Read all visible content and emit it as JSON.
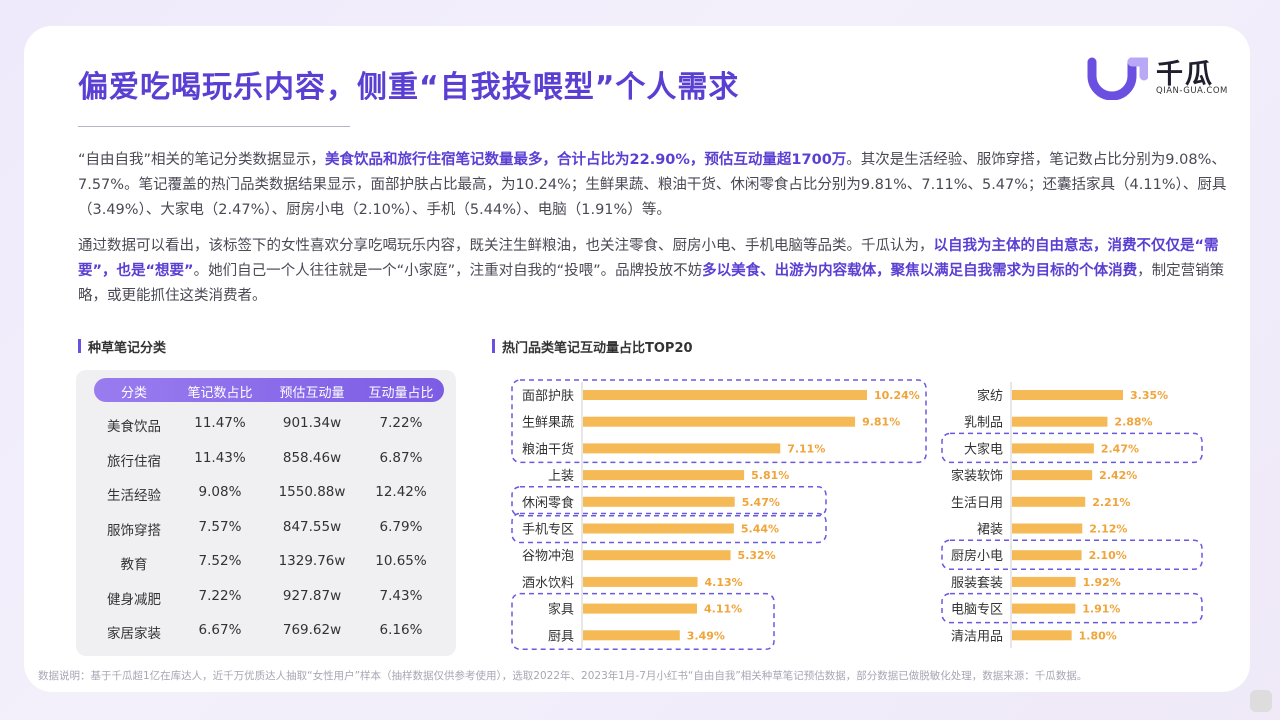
{
  "title": "偏爱吃喝玩乐内容，侧重“自我投喂型”个人需求",
  "logo": {
    "name": "千瓜",
    "sub": "QIAN-GUA.COM"
  },
  "paragraph1": {
    "a": "“自由自我”相关的笔记分类数据显示，",
    "b": "美食饮品和旅行住宿笔记数量最多，合计占比为22.90%，预估互动量超1700万",
    "c": "。其次是生活经验、服饰穿搭，笔记数占比分别为9.08%、7.57%。笔记覆盖的热门品类数据结果显示，面部护肤占比最高，为10.24%；生鲜果蔬、粮油干货、休闲零食占比分别为9.81%、7.11%、5.47%；还囊括家具（4.11%）、厨具（3.49%）、大家电（2.47%）、厨房小电（2.10%）、手机（5.44%）、电脑（1.91%）等。"
  },
  "paragraph2": {
    "a": "通过数据可以看出，该标签下的女性喜欢分享吃喝玩乐内容，既关注生鲜粮油，也关注零食、厨房小电、手机电脑等品类。千瓜认为，",
    "b": "以自我为主体的自由意志，消费不仅仅是“需要”，也是“想要”",
    "c": "。她们自己一个人往往就是一个“小家庭”，注重对自我的“投喂”。品牌投放不妨",
    "d": "多以美食、出游为内容载体，聚焦以满足自我需求为目标的个体消费",
    "e": "，制定营销策略，或更能抓住这类消费者。"
  },
  "table_section_label": "种草笔记分类",
  "chart_section_label": "热门品类笔记互动量占比TOP20",
  "table": {
    "headers": [
      "分类",
      "笔记数占比",
      "预估互动量",
      "互动量占比"
    ],
    "rows": [
      [
        "美食饮品",
        "11.47%",
        "901.34w",
        "7.22%"
      ],
      [
        "旅行住宿",
        "11.43%",
        "858.46w",
        "6.87%"
      ],
      [
        "生活经验",
        "9.08%",
        "1550.88w",
        "12.42%"
      ],
      [
        "服饰穿搭",
        "7.57%",
        "847.55w",
        "6.79%"
      ],
      [
        "教育",
        "7.52%",
        "1329.76w",
        "10.65%"
      ],
      [
        "健身减肥",
        "7.22%",
        "927.87w",
        "7.43%"
      ],
      [
        "家居家装",
        "6.67%",
        "769.62w",
        "6.16%"
      ]
    ]
  },
  "chart_data": {
    "type": "bar",
    "orientation": "horizontal",
    "title": "热门品类笔记互动量占比TOP20",
    "unit": "%",
    "columns": [
      {
        "categories": [
          "面部护肤",
          "生鲜果蔬",
          "粮油干货",
          "上装",
          "休闲零食",
          "手机专区",
          "谷物冲泡",
          "酒水饮料",
          "家具",
          "厨具"
        ],
        "values": [
          10.24,
          9.81,
          7.11,
          5.81,
          5.47,
          5.44,
          5.32,
          4.13,
          4.11,
          3.49
        ],
        "labels": [
          "10.24%",
          "9.81%",
          "7.11%",
          "5.81%",
          "5.47%",
          "5.44%",
          "5.32%",
          "4.13%",
          "4.11%",
          "3.49%"
        ]
      },
      {
        "categories": [
          "家纺",
          "乳制品",
          "大家电",
          "家装软饰",
          "生活日用",
          "裙装",
          "厨房小电",
          "服装套装",
          "电脑专区",
          "清洁用品"
        ],
        "values": [
          3.35,
          2.88,
          2.47,
          2.42,
          2.21,
          2.12,
          2.1,
          1.92,
          1.91,
          1.8
        ],
        "labels": [
          "3.35%",
          "2.88%",
          "2.47%",
          "2.42%",
          "2.21%",
          "2.12%",
          "2.10%",
          "1.92%",
          "1.91%",
          "1.80%"
        ]
      }
    ],
    "highlight_groups": [
      [
        "面部护肤",
        "生鲜果蔬",
        "粮油干货"
      ],
      [
        "休闲零食"
      ],
      [
        "手机专区"
      ],
      [
        "家具",
        "厨具"
      ],
      [
        "大家电"
      ],
      [
        "厨房小电"
      ],
      [
        "电脑专区"
      ]
    ],
    "bar_color": "#f5b955",
    "highlight_color": "#6a5ae0"
  },
  "footnote": "数据说明：基于千瓜超1亿在库达人，近千万优质达人抽取“女性用户”样本（抽样数据仅供参考使用），选取2022年、2023年1月-7月小红书“自由自我”相关种草笔记预估数据，部分数据已做脱敏化处理，数据来源：千瓜数据。"
}
